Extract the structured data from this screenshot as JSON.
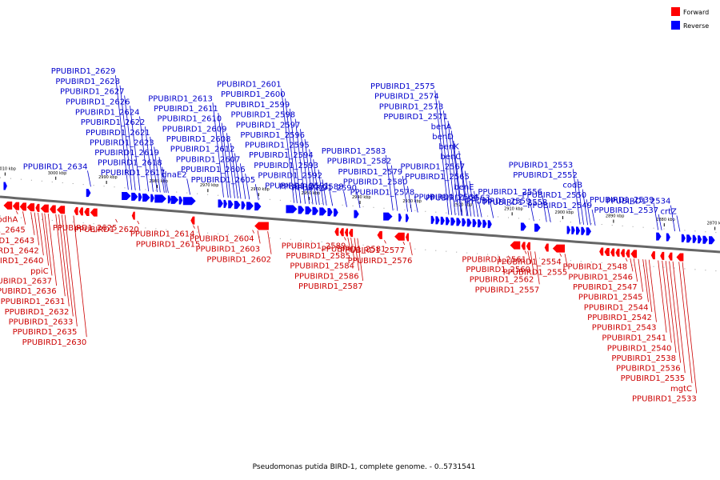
{
  "caption": "Pseudomonas putida BIRD-1, complete genome. - 0..5731541",
  "colors": {
    "forward": "#ff0000",
    "reverse": "#0000ff",
    "forward_label": "#cc0000",
    "reverse_label": "#0000cc",
    "axis": "#555555"
  },
  "legend": [
    {
      "name": "Forward",
      "color": "#ff0000"
    },
    {
      "name": "Reverse",
      "color": "#0000ff"
    }
  ],
  "ticks": [
    {
      "label": "3010 kbp",
      "pos": 3010
    },
    {
      "label": "3000 kbp",
      "pos": 3000
    },
    {
      "label": "2990 kbp",
      "pos": 2990
    },
    {
      "label": "2980 kbp",
      "pos": 2980
    },
    {
      "label": "2970 kbp",
      "pos": 2970
    },
    {
      "label": "2960 kbp",
      "pos": 2960
    },
    {
      "label": "2950 kbp",
      "pos": 2950
    },
    {
      "label": "2940 kbp",
      "pos": 2940
    },
    {
      "label": "2930 kbp",
      "pos": 2930
    },
    {
      "label": "2920 kbp",
      "pos": 2920
    },
    {
      "label": "2910 kbp",
      "pos": 2910
    },
    {
      "label": "2900 kbp",
      "pos": 2900
    },
    {
      "label": "2890 kbp",
      "pos": 2890
    },
    {
      "label": "2880 kbp",
      "pos": 2880
    },
    {
      "label": "2870 kbp",
      "pos": 2870
    }
  ],
  "reverse_genes": [
    {
      "name": "PPUBIRD1_2629",
      "pos": 2985.7
    },
    {
      "name": "PPUBIRD1_2628",
      "pos": 2985.0
    },
    {
      "name": "PPUBIRD1_2619",
      "pos": 2978.6
    },
    {
      "name": "PPUBIRD1_2617",
      "pos": 2977.8
    },
    {
      "name": "PPUBIRD1_2627",
      "pos": 2984.3
    },
    {
      "name": "PPUBIRD1_2626",
      "pos": 2983.4
    },
    {
      "name": "PPUBIRD1_2624",
      "pos": 2981.7
    },
    {
      "name": "PPUBIRD1_2622",
      "pos": 2980.8
    },
    {
      "name": "PPUBIRD1_2621",
      "pos": 2980.0
    },
    {
      "name": "PPUBIRD1_2623",
      "pos": 2979.4
    },
    {
      "name": "PPUBIRD1_2618",
      "pos": 2978.2
    },
    {
      "name": "dnaE2",
      "pos": 2973.5
    },
    {
      "name": "PPUBIRD1_2613",
      "pos": 2966.9
    },
    {
      "name": "PPUBIRD1_2611",
      "pos": 2966.0
    },
    {
      "name": "PPUBIRD1_2610",
      "pos": 2965.5
    },
    {
      "name": "PPUBIRD1_2609",
      "pos": 2964.7
    },
    {
      "name": "PPUBIRD1_2608",
      "pos": 2964.1
    },
    {
      "name": "PPUBIRD1_2612",
      "pos": 2963.5
    },
    {
      "name": "PPUBIRD1_2607",
      "pos": 2962.6
    },
    {
      "name": "PPUBIRD1_2606",
      "pos": 2961.8
    },
    {
      "name": "PPUBIRD1_2605",
      "pos": 2960.0
    },
    {
      "name": "PPUBIRD1_2600",
      "pos": 2952.4
    },
    {
      "name": "PPUBIRD1_2599",
      "pos": 2951.7
    },
    {
      "name": "PPUBIRD1_2598",
      "pos": 2950.8
    },
    {
      "name": "PPUBIRD1_2597",
      "pos": 2950.0
    },
    {
      "name": "PPUBIRD1_2596",
      "pos": 2949.3
    },
    {
      "name": "PPUBIRD1_2595",
      "pos": 2948.6
    },
    {
      "name": "PPUBIRD1_2592",
      "pos": 2946.6
    },
    {
      "name": "PPUBIRD1_2601",
      "pos": 2953.0
    },
    {
      "name": "PPUBIRD1_2594",
      "pos": 2948.0
    },
    {
      "name": "PPUBIRD1_2593",
      "pos": 2947.2
    },
    {
      "name": "PPUBIRD1_2591",
      "pos": 2945.4
    },
    {
      "name": "PPUBIRD1_2590",
      "pos": 2940.0
    },
    {
      "name": "PPUBIRD1_2588",
      "pos": 2942.6
    },
    {
      "name": "PPUBIRD1_2634",
      "pos": 2993.1
    },
    {
      "name": "PPUBIRD1_2583",
      "pos": 2933.5
    },
    {
      "name": "PPUBIRD1_2582",
      "pos": 2932.6
    },
    {
      "name": "PPUBIRD1_2579",
      "pos": 2930.6
    },
    {
      "name": "PPUBIRD1_2580",
      "pos": 2929.8
    },
    {
      "name": "PPUBIRD1_2578",
      "pos": 2928.6
    },
    {
      "name": "PPUBIRD1_2575",
      "pos": 2922.5
    },
    {
      "name": "PPUBIRD1_2574",
      "pos": 2921.9
    },
    {
      "name": "PPUBIRD1_2573",
      "pos": 2921.2
    },
    {
      "name": "PPUBIRD1_2571",
      "pos": 2920.5
    },
    {
      "name": "benD",
      "pos": 2919.8
    },
    {
      "name": "benK",
      "pos": 2918.9
    },
    {
      "name": "PPUBIRD1_2567",
      "pos": 2918.1
    },
    {
      "name": "PPUBIRD1_2565",
      "pos": 2917.4
    },
    {
      "name": "PPUBIRD1_2564",
      "pos": 2916.0
    },
    {
      "name": "benA",
      "pos": 2920.0
    },
    {
      "name": "benC",
      "pos": 2918.7
    },
    {
      "name": "benE",
      "pos": 2916.7
    },
    {
      "name": "PPUBIRD1_2563",
      "pos": 2913.7
    },
    {
      "name": "PPUBIRD1_2559",
      "pos": 2905.7
    },
    {
      "name": "PPUBIRD1_2556",
      "pos": 2903.2
    },
    {
      "name": "PPUBIRD1_2558",
      "pos": 2902.4
    },
    {
      "name": "PPUBIRD1_2553",
      "pos": 2896.6
    },
    {
      "name": "PPUBIRD1_2552",
      "pos": 2895.9
    },
    {
      "name": "codB",
      "pos": 2895.1
    },
    {
      "name": "PPUBIRD1_2550",
      "pos": 2894.5
    },
    {
      "name": "PPUBIRD1_2549",
      "pos": 2893.6
    },
    {
      "name": "PPUBIRD1_2539",
      "pos": 2881.2
    },
    {
      "name": "PPUBIRD1_2537",
      "pos": 2880.5
    },
    {
      "name": "PPUBIRD1_2534",
      "pos": 2877.9
    },
    {
      "name": "crtZ",
      "pos": 2876.9
    }
  ],
  "forward_genes": [
    {
      "name": "bdhA",
      "pos": 3007.8
    },
    {
      "name": "PPUBIRD1_2645",
      "pos": 3006.5
    },
    {
      "name": "ppiC",
      "pos": 3002.7
    },
    {
      "name": "PPUBIRD1_2635",
      "pos": 2998.2
    },
    {
      "name": "PPUBIRD1_2630",
      "pos": 2996.5
    },
    {
      "name": "PPUBIRD1_2631",
      "pos": 3000.0
    },
    {
      "name": "PPUBIRD1_2632",
      "pos": 2999.4
    },
    {
      "name": "PPUBIRD1_2633",
      "pos": 2998.8
    },
    {
      "name": "PPUBIRD1_2636",
      "pos": 3001.5
    },
    {
      "name": "PPUBIRD1_2637",
      "pos": 3002.2
    },
    {
      "name": "PPUBIRD1_2640",
      "pos": 3003.5
    },
    {
      "name": "PPUBIRD1_2642",
      "pos": 3004.2
    },
    {
      "name": "PPUBIRD1_2643",
      "pos": 3004.9
    },
    {
      "name": "PPUBIRD1_2625",
      "pos": 2988.2
    },
    {
      "name": "PPUBIRD1_2620",
      "pos": 2983.9
    },
    {
      "name": "PPUBIRD1_2614",
      "pos": 2972.9
    },
    {
      "name": "PPUBIRD1_2615",
      "pos": 2972.0
    },
    {
      "name": "PPUBIRD1_2602",
      "pos": 2958.2
    },
    {
      "name": "PPUBIRD1_2603",
      "pos": 2960.2
    },
    {
      "name": "PPUBIRD1_2604",
      "pos": 2961.2
    },
    {
      "name": "PPUBIRD1_2589",
      "pos": 2943.1
    },
    {
      "name": "PPUBIRD1_2585",
      "pos": 2942.4
    },
    {
      "name": "PPUBIRD1_2584",
      "pos": 2941.8
    },
    {
      "name": "PPUBIRD1_2586",
      "pos": 2941.1
    },
    {
      "name": "PPUBIRD1_2587",
      "pos": 2940.5
    },
    {
      "name": "PPUBIRD1_2581",
      "pos": 2935.2
    },
    {
      "name": "PPUBIRD1_2577",
      "pos": 2931.5
    },
    {
      "name": "PPUBIRD1_2576",
      "pos": 2930.2
    },
    {
      "name": "PPUBIRD1_2562",
      "pos": 2906.4
    },
    {
      "name": "PPUBIRD1_2557",
      "pos": 2905.5
    },
    {
      "name": "PPUBIRD1_2560",
      "pos": 2906.9
    },
    {
      "name": "PPUBIRD1_2561",
      "pos": 2907.5
    },
    {
      "name": "PPUBIRD1_2554",
      "pos": 2900.6
    },
    {
      "name": "PPUBIRD1_2555",
      "pos": 2899.6
    },
    {
      "name": "PPUBIRD1_2542",
      "pos": 2883.7
    },
    {
      "name": "mgtC",
      "pos": 2877.1
    },
    {
      "name": "PPUBIRD1_2546",
      "pos": 2886.7
    },
    {
      "name": "PPUBIRD1_2533",
      "pos": 2876.4
    },
    {
      "name": "PPUBIRD1_2548",
      "pos": 2887.6
    },
    {
      "name": "PPUBIRD1_2535",
      "pos": 2878.3
    },
    {
      "name": "PPUBIRD1_2536",
      "pos": 2879.0
    },
    {
      "name": "PPUBIRD1_2538",
      "pos": 2879.7
    },
    {
      "name": "PPUBIRD1_2540",
      "pos": 2880.4
    },
    {
      "name": "PPUBIRD1_2541",
      "pos": 2881.2
    },
    {
      "name": "PPUBIRD1_2543",
      "pos": 2883.0
    },
    {
      "name": "PPUBIRD1_2544",
      "pos": 2884.2
    },
    {
      "name": "PPUBIRD1_2545",
      "pos": 2885.1
    },
    {
      "name": "PPUBIRD1_2547",
      "pos": 2886.0
    }
  ],
  "reverse_features": [
    {
      "start": 3010.3,
      "end": 3009.6
    },
    {
      "start": 2994.0,
      "end": 2993.1
    },
    {
      "start": 2987.0,
      "end": 2985.2
    },
    {
      "start": 2985.1,
      "end": 2983.8
    },
    {
      "start": 2983.7,
      "end": 2983.0
    },
    {
      "start": 2982.9,
      "end": 2981.4
    },
    {
      "start": 2981.3,
      "end": 2980.6
    },
    {
      "start": 2980.5,
      "end": 2978.2
    },
    {
      "start": 2977.9,
      "end": 2977.4
    },
    {
      "start": 2977.3,
      "end": 2975.8
    },
    {
      "start": 2975.7,
      "end": 2975.0
    },
    {
      "start": 2974.9,
      "end": 2972.4
    },
    {
      "start": 2968.0,
      "end": 2967.0
    },
    {
      "start": 2966.9,
      "end": 2966.2
    },
    {
      "start": 2966.0,
      "end": 2965.0
    },
    {
      "start": 2964.8,
      "end": 2963.6
    },
    {
      "start": 2963.4,
      "end": 2962.6
    },
    {
      "start": 2962.4,
      "end": 2961.0
    },
    {
      "start": 2960.8,
      "end": 2959.5
    },
    {
      "start": 2954.6,
      "end": 2952.4
    },
    {
      "start": 2952.2,
      "end": 2951.0
    },
    {
      "start": 2950.8,
      "end": 2949.5
    },
    {
      "start": 2949.4,
      "end": 2948.2
    },
    {
      "start": 2948.0,
      "end": 2946.6
    },
    {
      "start": 2946.4,
      "end": 2945.4
    },
    {
      "start": 2945.2,
      "end": 2944.3
    },
    {
      "start": 2941.2,
      "end": 2940.2
    },
    {
      "start": 2935.4,
      "end": 2933.6
    },
    {
      "start": 2932.4,
      "end": 2931.8
    },
    {
      "start": 2931.0,
      "end": 2930.5
    },
    {
      "start": 2926.0,
      "end": 2925.3
    },
    {
      "start": 2925.1,
      "end": 2924.3
    },
    {
      "start": 2924.1,
      "end": 2923.3
    },
    {
      "start": 2923.1,
      "end": 2922.3
    },
    {
      "start": 2922.1,
      "end": 2921.2
    },
    {
      "start": 2921.0,
      "end": 2920.1
    },
    {
      "start": 2919.9,
      "end": 2919.1
    },
    {
      "start": 2918.9,
      "end": 2918.0
    },
    {
      "start": 2917.8,
      "end": 2917.0
    },
    {
      "start": 2916.8,
      "end": 2916.0
    },
    {
      "start": 2915.8,
      "end": 2915.0
    },
    {
      "start": 2914.8,
      "end": 2914.0
    },
    {
      "start": 2908.3,
      "end": 2907.2
    },
    {
      "start": 2905.6,
      "end": 2904.4
    },
    {
      "start": 2899.2,
      "end": 2898.5
    },
    {
      "start": 2898.3,
      "end": 2897.6
    },
    {
      "start": 2897.4,
      "end": 2896.6
    },
    {
      "start": 2896.4,
      "end": 2895.6
    },
    {
      "start": 2895.4,
      "end": 2894.4
    },
    {
      "start": 2881.6,
      "end": 2880.6
    },
    {
      "start": 2879.6,
      "end": 2878.8
    },
    {
      "start": 2876.6,
      "end": 2875.8
    },
    {
      "start": 2875.6,
      "end": 2874.6
    },
    {
      "start": 2874.4,
      "end": 2873.6
    },
    {
      "start": 2873.4,
      "end": 2872.6
    },
    {
      "start": 2872.4,
      "end": 2871.4
    },
    {
      "start": 2871.2,
      "end": 2870.0
    }
  ],
  "forward_features": [
    {
      "start": 3010.3,
      "end": 3008.6
    },
    {
      "start": 3008.5,
      "end": 3007.2
    },
    {
      "start": 3007.1,
      "end": 3005.8
    },
    {
      "start": 3005.7,
      "end": 3004.2
    },
    {
      "start": 3004.0,
      "end": 3003.2
    },
    {
      "start": 3003.0,
      "end": 3001.4
    },
    {
      "start": 3001.2,
      "end": 3000.0
    },
    {
      "start": 2999.8,
      "end": 2998.2
    },
    {
      "start": 2996.4,
      "end": 2995.6
    },
    {
      "start": 2995.4,
      "end": 2994.6
    },
    {
      "start": 2994.4,
      "end": 2993.4
    },
    {
      "start": 2993.2,
      "end": 2991.8
    },
    {
      "start": 2985.0,
      "end": 2984.6
    },
    {
      "start": 2973.4,
      "end": 2972.6
    },
    {
      "start": 2960.8,
      "end": 2958.0
    },
    {
      "start": 2945.0,
      "end": 2944.2
    },
    {
      "start": 2944.0,
      "end": 2943.2
    },
    {
      "start": 2943.0,
      "end": 2942.4
    },
    {
      "start": 2942.2,
      "end": 2941.4
    },
    {
      "start": 2936.6,
      "end": 2935.6
    },
    {
      "start": 2933.2,
      "end": 2931.2
    },
    {
      "start": 2931.0,
      "end": 2930.4
    },
    {
      "start": 2910.4,
      "end": 2908.4
    },
    {
      "start": 2908.2,
      "end": 2907.4
    },
    {
      "start": 2907.2,
      "end": 2906.4
    },
    {
      "start": 2903.6,
      "end": 2902.8
    },
    {
      "start": 2902.0,
      "end": 2899.6
    },
    {
      "start": 2892.8,
      "end": 2892.0
    },
    {
      "start": 2891.8,
      "end": 2890.8
    },
    {
      "start": 2890.6,
      "end": 2889.8
    },
    {
      "start": 2889.6,
      "end": 2888.8
    },
    {
      "start": 2888.6,
      "end": 2887.8
    },
    {
      "start": 2887.6,
      "end": 2886.8
    },
    {
      "start": 2886.6,
      "end": 2885.4
    },
    {
      "start": 2882.6,
      "end": 2881.8
    },
    {
      "start": 2880.8,
      "end": 2880.0
    },
    {
      "start": 2879.2,
      "end": 2878.4
    },
    {
      "start": 2877.6,
      "end": 2876.2
    }
  ]
}
